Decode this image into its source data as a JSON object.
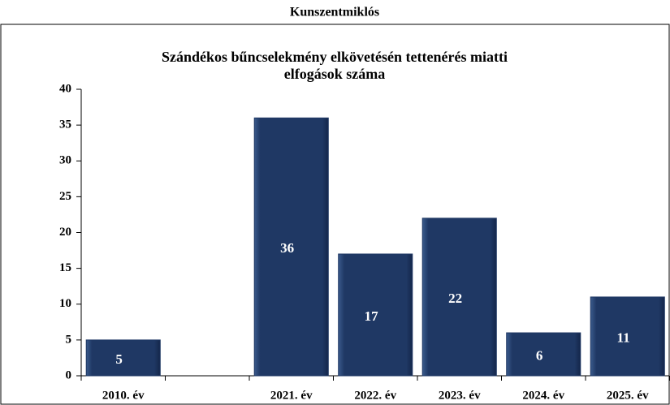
{
  "chart_data": {
    "type": "bar",
    "title": "Kunszentmiklós",
    "subtitle": [
      "Szándékos bűncselekmény elkövetésén tettenérés miatti",
      "elfogások száma"
    ],
    "categories": [
      "2010. év",
      null,
      "2021. év",
      "2022. év",
      "2023. év",
      "2024. év",
      "2025. év"
    ],
    "values": [
      5,
      null,
      36,
      17,
      22,
      6,
      11
    ],
    "color": "#1f3864",
    "ylim": [
      0,
      40
    ],
    "yticks": [
      0,
      5,
      10,
      15,
      20,
      25,
      30,
      35,
      40
    ],
    "grid": false
  }
}
